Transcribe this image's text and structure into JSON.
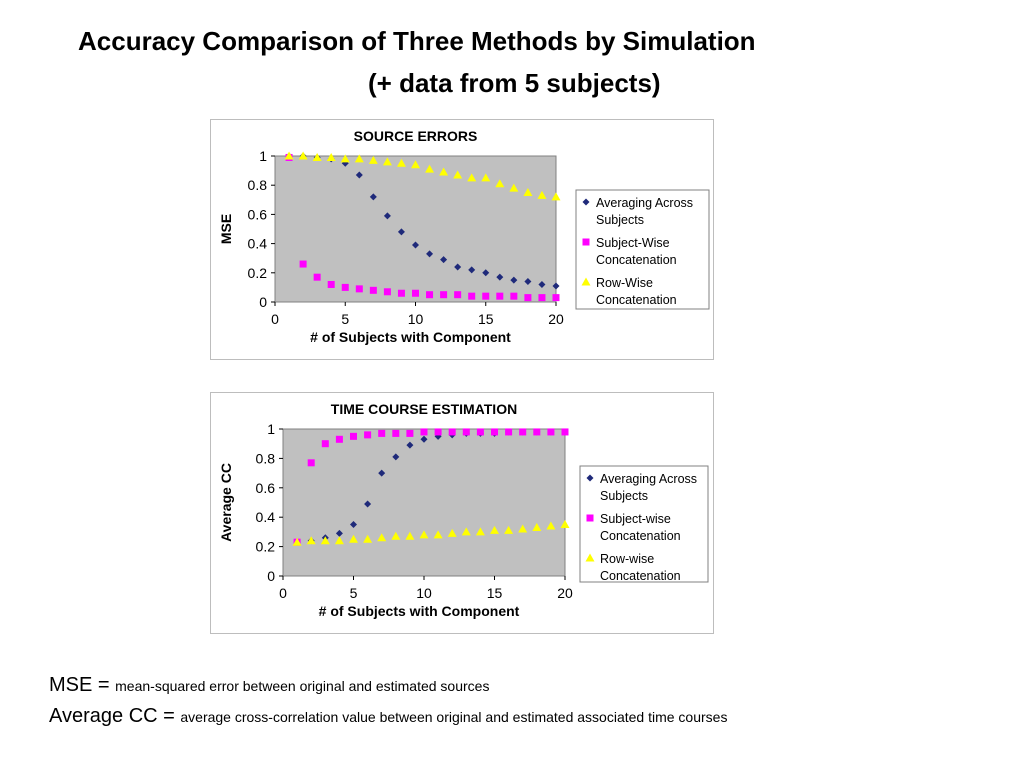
{
  "slide": {
    "title_line1": "Accuracy Comparison of Three Methods by Simulation",
    "title_line2": "(+ data from 5 subjects)"
  },
  "footnotes": [
    {
      "term": "MSE = ",
      "definition": "mean-squared error between original and estimated sources"
    },
    {
      "term": "Average CC = ",
      "definition": "average cross-correlation value between original and estimated associated time courses"
    }
  ],
  "colors": {
    "plot_bg": "#c0c0c0",
    "averaging": "#1f2a7a",
    "subject": "#ff00ff",
    "row": "#ffff00"
  },
  "chart_data": [
    {
      "type": "scatter",
      "title": "SOURCE ERRORS",
      "xlabel": "# of Subjects with Component",
      "ylabel": "MSE",
      "xlim": [
        0,
        20
      ],
      "ylim": [
        0,
        1
      ],
      "xticks": [
        0,
        5,
        10,
        15,
        20
      ],
      "yticks": [
        0,
        0.2,
        0.4,
        0.6,
        0.8,
        1
      ],
      "ytick_labels": [
        "0",
        "0.2",
        "0.4",
        "0.6",
        "0.8",
        "1"
      ],
      "legend_position": "right",
      "series": [
        {
          "name": "Averaging Across Subjects",
          "marker": "diamond",
          "color": "#1f2a7a",
          "x": [
            1,
            2,
            3,
            4,
            5,
            6,
            7,
            8,
            9,
            10,
            11,
            12,
            13,
            14,
            15,
            16,
            17,
            18,
            19,
            20
          ],
          "y": [
            1.0,
            1.0,
            0.99,
            0.98,
            0.95,
            0.87,
            0.72,
            0.59,
            0.48,
            0.39,
            0.33,
            0.29,
            0.24,
            0.22,
            0.2,
            0.17,
            0.15,
            0.14,
            0.12,
            0.11
          ]
        },
        {
          "name": "Subject-Wise Concatenation",
          "marker": "square",
          "color": "#ff00ff",
          "x": [
            1,
            2,
            3,
            4,
            5,
            6,
            7,
            8,
            9,
            10,
            11,
            12,
            13,
            14,
            15,
            16,
            17,
            18,
            19,
            20
          ],
          "y": [
            0.99,
            0.26,
            0.17,
            0.12,
            0.1,
            0.09,
            0.08,
            0.07,
            0.06,
            0.06,
            0.05,
            0.05,
            0.05,
            0.04,
            0.04,
            0.04,
            0.04,
            0.03,
            0.03,
            0.03
          ]
        },
        {
          "name": "Row-Wise Concatenation",
          "marker": "triangle",
          "color": "#ffff00",
          "x": [
            1,
            2,
            3,
            4,
            5,
            6,
            7,
            8,
            9,
            10,
            11,
            12,
            13,
            14,
            15,
            16,
            17,
            18,
            19,
            20
          ],
          "y": [
            1.0,
            1.0,
            0.99,
            0.99,
            0.98,
            0.98,
            0.97,
            0.96,
            0.95,
            0.94,
            0.91,
            0.89,
            0.87,
            0.85,
            0.85,
            0.81,
            0.78,
            0.75,
            0.73,
            0.72
          ]
        }
      ]
    },
    {
      "type": "scatter",
      "title": "TIME COURSE ESTIMATION",
      "xlabel": "# of Subjects with Component",
      "ylabel": "Average CC",
      "xlim": [
        0,
        20
      ],
      "ylim": [
        0,
        1
      ],
      "xticks": [
        0,
        5,
        10,
        15,
        20
      ],
      "yticks": [
        0,
        0.2,
        0.4,
        0.6,
        0.8,
        1
      ],
      "ytick_labels": [
        "0",
        "0.2",
        "0.4",
        "0.6",
        "0.8",
        "1"
      ],
      "legend_position": "right",
      "series": [
        {
          "name": "Averaging Across Subjects",
          "marker": "diamond",
          "color": "#1f2a7a",
          "x": [
            1,
            2,
            3,
            4,
            5,
            6,
            7,
            8,
            9,
            10,
            11,
            12,
            13,
            14,
            15,
            16,
            17,
            18,
            19,
            20
          ],
          "y": [
            0.23,
            0.24,
            0.26,
            0.29,
            0.35,
            0.49,
            0.7,
            0.81,
            0.89,
            0.93,
            0.95,
            0.96,
            0.97,
            0.97,
            0.97,
            0.98,
            0.98,
            0.98,
            0.98,
            0.98
          ]
        },
        {
          "name": "Subject-wise Concatenation",
          "marker": "square",
          "color": "#ff00ff",
          "x": [
            1,
            2,
            3,
            4,
            5,
            6,
            7,
            8,
            9,
            10,
            11,
            12,
            13,
            14,
            15,
            16,
            17,
            18,
            19,
            20
          ],
          "y": [
            0.23,
            0.77,
            0.9,
            0.93,
            0.95,
            0.96,
            0.97,
            0.97,
            0.97,
            0.98,
            0.98,
            0.98,
            0.98,
            0.98,
            0.98,
            0.98,
            0.98,
            0.98,
            0.98,
            0.98
          ]
        },
        {
          "name": "Row-wise Concatenation",
          "marker": "triangle",
          "color": "#ffff00",
          "x": [
            1,
            2,
            3,
            4,
            5,
            6,
            7,
            8,
            9,
            10,
            11,
            12,
            13,
            14,
            15,
            16,
            17,
            18,
            19,
            20
          ],
          "y": [
            0.23,
            0.24,
            0.24,
            0.24,
            0.25,
            0.25,
            0.26,
            0.27,
            0.27,
            0.28,
            0.28,
            0.29,
            0.3,
            0.3,
            0.31,
            0.31,
            0.32,
            0.33,
            0.34,
            0.35
          ]
        }
      ]
    }
  ]
}
